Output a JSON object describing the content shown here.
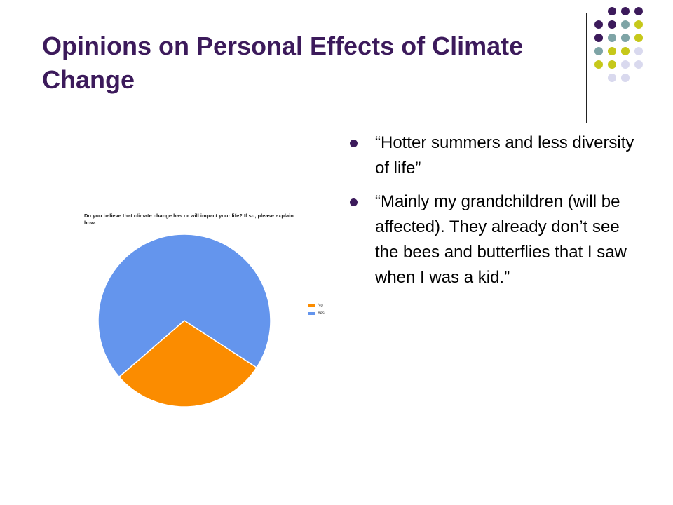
{
  "slide": {
    "title": "Opinions on Personal Effects of Climate Change"
  },
  "bullets": [
    "“Hotter summers and less diversity of life”",
    "“Mainly my grandchildren (will be affected).  They already  don’t see the bees and butterflies that I saw when I was a kid.”"
  ],
  "colors": {
    "title": "#3c1a5b",
    "no": "#fb8c00",
    "yes": "#6495ed",
    "dot_purple": "#3c1a5b",
    "dot_teal": "#7ea4a6",
    "dot_lime": "#c6c81a",
    "dot_lavender": "#d9d9ee"
  },
  "decor": {
    "dot_rows": [
      [
        "purple",
        "purple",
        "purple"
      ],
      [
        "purple",
        "purple",
        "teal",
        "lime"
      ],
      [
        "purple",
        "teal",
        "teal",
        "lime"
      ],
      [
        "teal",
        "lime",
        "lime",
        "lavender"
      ],
      [
        "lime",
        "lime",
        "lavender",
        "lavender"
      ],
      [
        "lavender",
        "lavender"
      ]
    ]
  },
  "chart_data": {
    "type": "pie",
    "title": "Do you believe that climate change has or will impact your life? If so, please explain how.",
    "slices": [
      {
        "label": "No",
        "value": 29.5,
        "color": "#fb8c00"
      },
      {
        "label": "Yes",
        "value": 70.5,
        "color": "#6495ed"
      }
    ],
    "legend_position": "right"
  }
}
